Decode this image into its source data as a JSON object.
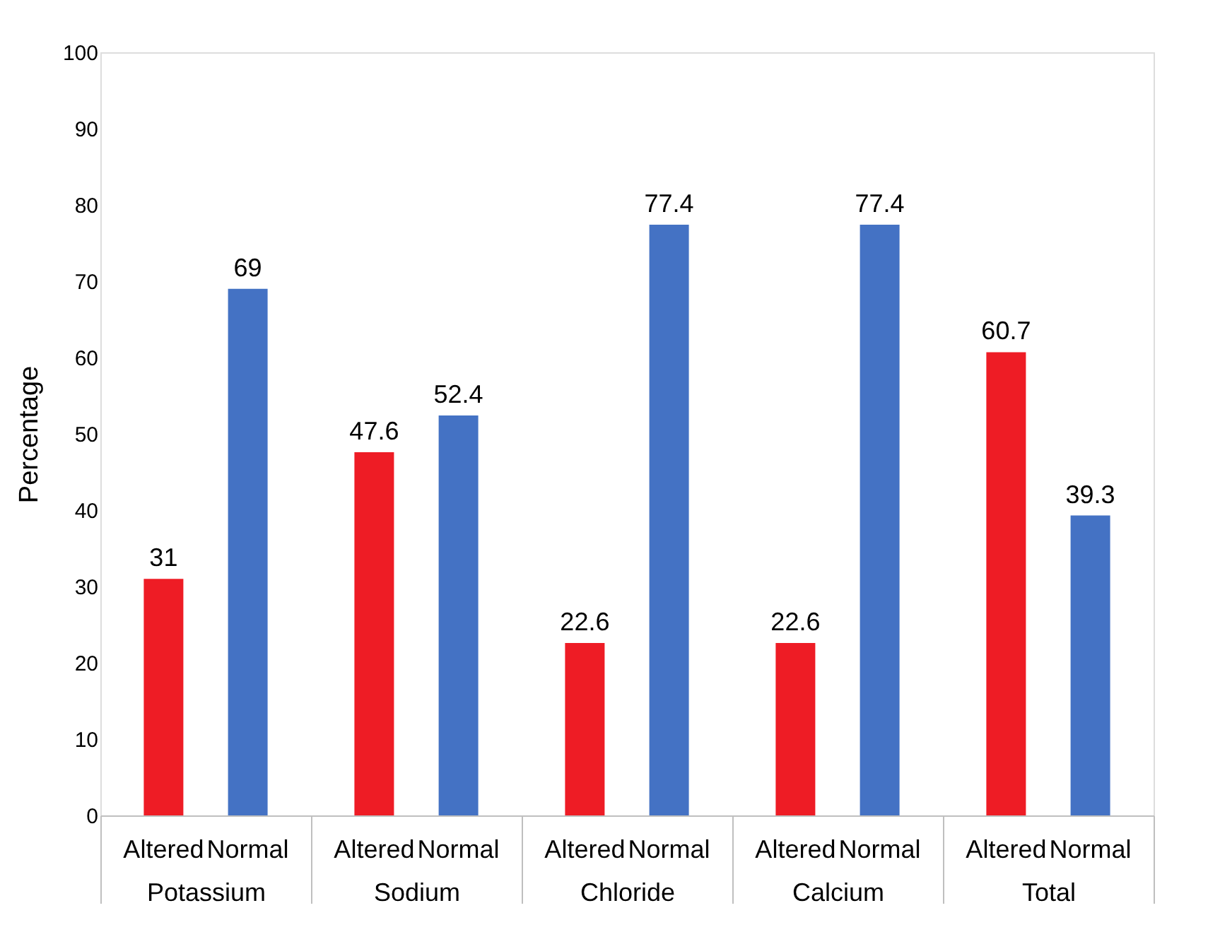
{
  "chart_data": {
    "type": "bar",
    "ylabel": "Percentage",
    "categories": [
      "Potassium",
      "Sodium",
      "Chloride",
      "Calcium",
      "Total"
    ],
    "series": [
      {
        "name": "Altered",
        "color": "#ee1c25",
        "values": [
          31,
          47.6,
          22.6,
          22.6,
          60.7
        ]
      },
      {
        "name": "Normal",
        "color": "#4472c4",
        "values": [
          69,
          52.4,
          77.4,
          77.4,
          39.3
        ]
      }
    ],
    "ylim": [
      0,
      100
    ],
    "yticks": [
      0,
      10,
      20,
      30,
      40,
      50,
      60,
      70,
      80,
      90,
      100
    ],
    "data_labels": true,
    "grid": false,
    "legend": false
  }
}
